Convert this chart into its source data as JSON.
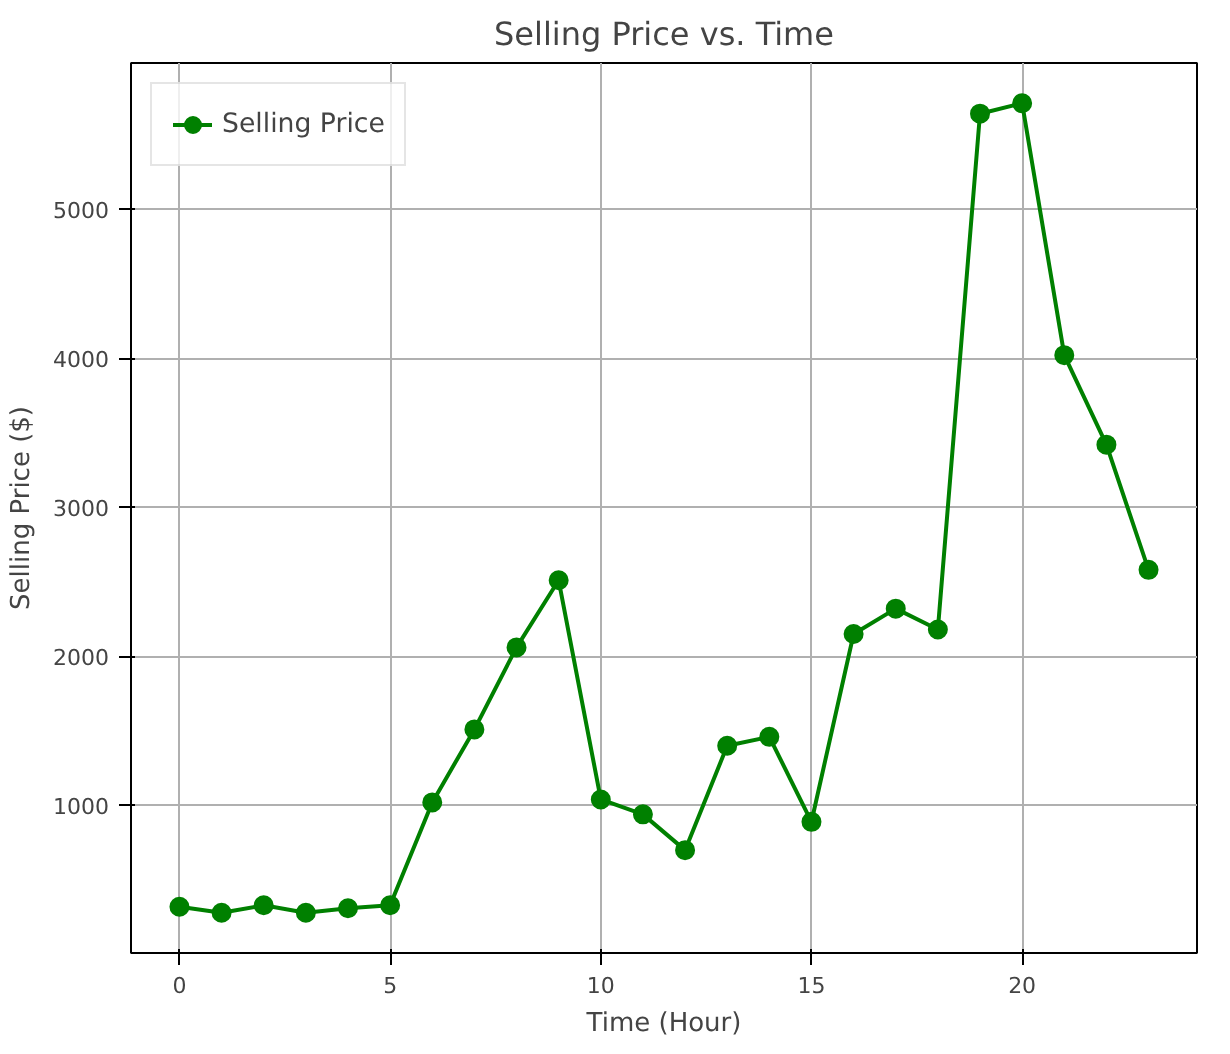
{
  "chart_data": {
    "type": "line",
    "title": "Selling Price vs. Time",
    "xlabel": "Time (Hour)",
    "ylabel": "Selling Price ($)",
    "x": [
      0,
      1,
      2,
      3,
      4,
      5,
      6,
      7,
      8,
      9,
      10,
      11,
      12,
      13,
      14,
      15,
      16,
      17,
      18,
      19,
      20,
      21,
      22,
      23
    ],
    "series": [
      {
        "name": "Selling Price",
        "color": "#008000",
        "values": [
          320,
          280,
          330,
          280,
          310,
          330,
          1020,
          1510,
          2060,
          2510,
          1040,
          940,
          700,
          1400,
          1460,
          890,
          2150,
          2320,
          2180,
          5640,
          5710,
          4020,
          3420,
          2580
        ]
      }
    ],
    "xlim": [
      -1.15,
      24.15
    ],
    "ylim": [
      10,
      5980
    ],
    "xticks": [
      0,
      5,
      10,
      15,
      20
    ],
    "yticks": [
      1000,
      2000,
      3000,
      4000,
      5000
    ],
    "grid": true,
    "legend": "top left",
    "marker": "circle",
    "line_style": "solid"
  }
}
